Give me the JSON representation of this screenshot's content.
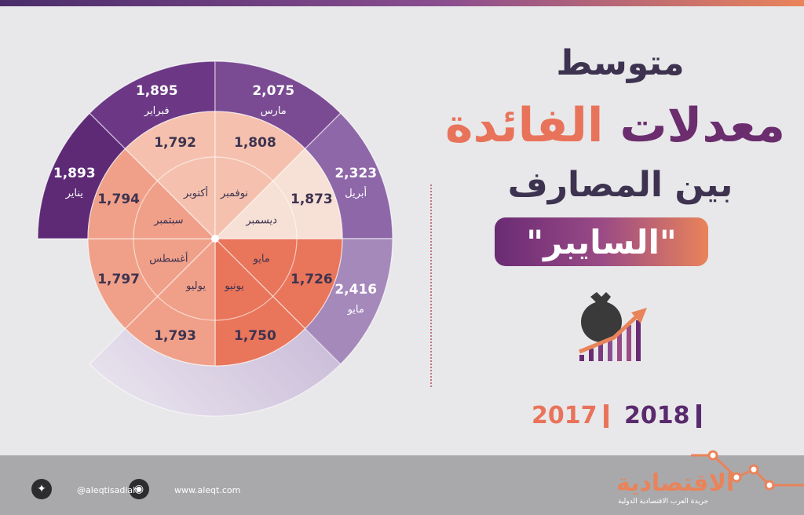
{
  "title": {
    "line1": "متوسط",
    "line2_part1": "معدلات",
    "line2_part2": "الفائدة",
    "line3": "بين المصارف",
    "pill": "\"السايبر\""
  },
  "legend": {
    "year_a": "2018",
    "year_b": "2017"
  },
  "footer": {
    "handle": "@aleqtisadiah",
    "site": "www.aleqt.com",
    "logo": "الاقتصادية",
    "logo_sub": "جريدة العرب الاقتصادية الدولية"
  },
  "colors": {
    "outer_2018": "#7a4b93",
    "outer_2018_dark": "#5e2a76",
    "inner_2017": "#e9755a",
    "inner_2017_light": "#f4c4b2"
  },
  "chart_data": {
    "type": "pie",
    "note_series": [
      {
        "name": "2018",
        "months": [
          "يناير",
          "فبراير",
          "مارس",
          "أبريل",
          "مايو"
        ],
        "values": [
          1.893,
          1.895,
          2.075,
          2.323,
          2.416
        ],
        "labels": [
          "1,893",
          "1,895",
          "2,075",
          "2,323",
          "2,416"
        ]
      },
      {
        "name": "2017",
        "months": [
          "مايو",
          "يونيو",
          "يوليو",
          "أغسطس",
          "سبتمبر",
          "أكتوبر",
          "نوفمبر",
          "ديسمبر"
        ],
        "values": [
          1.726,
          1.75,
          1.793,
          1.797,
          1.794,
          1.792,
          1.808,
          1.873
        ],
        "labels": [
          "1,726",
          "1,750",
          "1,793",
          "1,797",
          "1,794",
          "1,792",
          "1,808",
          "1,873"
        ]
      }
    ]
  }
}
